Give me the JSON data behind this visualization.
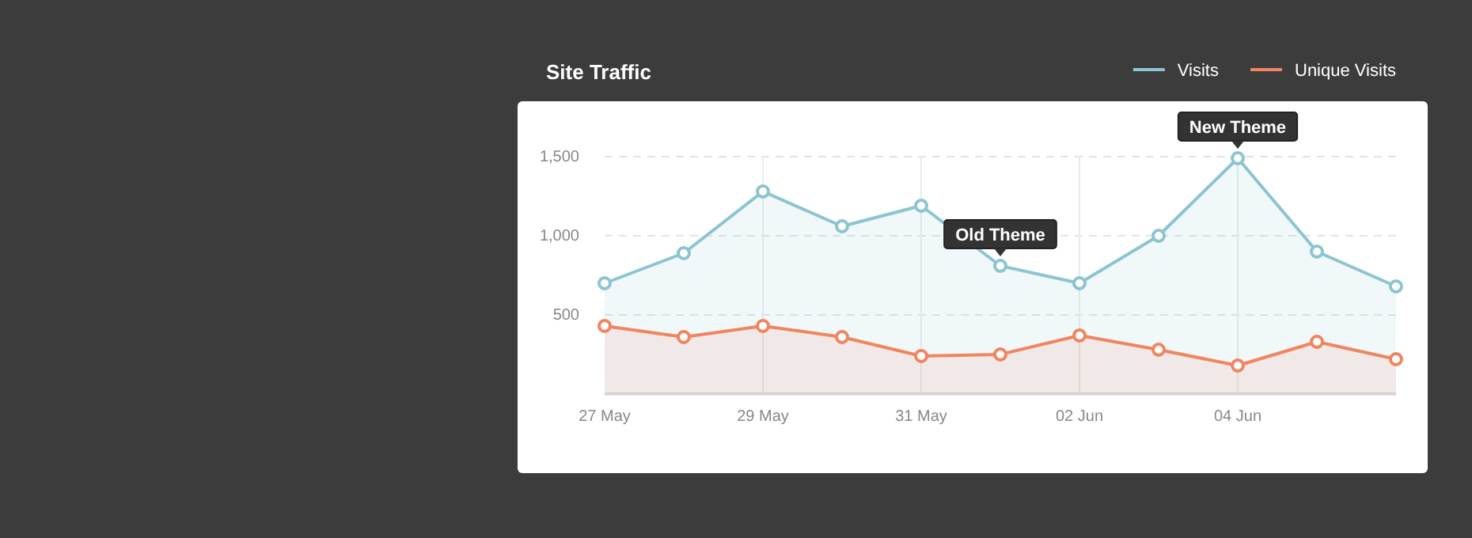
{
  "chart_data": {
    "type": "area",
    "title": "Site Traffic",
    "x": [
      "--05-27",
      "--05-28",
      "--05-29",
      "--05-30",
      "--05-31",
      "--06-01",
      "--06-02",
      "--06-03",
      "--06-04",
      "--06-05",
      "--06-06"
    ],
    "series": [
      {
        "name": "Visits",
        "color": "#8cc4d2",
        "values": [
          700,
          890,
          1280,
          1060,
          1190,
          810,
          700,
          1000,
          1490,
          900,
          680
        ]
      },
      {
        "name": "Unique Visits",
        "color": "#f08560",
        "values": [
          430,
          360,
          430,
          360,
          240,
          250,
          370,
          280,
          180,
          330,
          220
        ]
      }
    ],
    "xlim": [
      "--05-27",
      "--06-06"
    ],
    "xticks": [
      {
        "value": "--05-27",
        "label": "27 May"
      },
      {
        "value": "--05-29",
        "label": "29 May"
      },
      {
        "value": "--05-31",
        "label": "31 May"
      },
      {
        "value": "--06-02",
        "label": "02 Jun"
      },
      {
        "value": "--06-04",
        "label": "04 Jun"
      }
    ],
    "ylim": [
      0,
      1500
    ],
    "yticks": [
      {
        "value": 500,
        "label": "500"
      },
      {
        "value": 1000,
        "label": "1,000"
      },
      {
        "value": 1500,
        "label": "1,500"
      }
    ],
    "annotations": [
      {
        "text": "Old Theme",
        "x": "--06-01",
        "y": 810
      },
      {
        "text": "New Theme",
        "x": "--06-04",
        "y": 1490
      }
    ],
    "grid": true,
    "legend": "top right",
    "marker": "circle"
  }
}
